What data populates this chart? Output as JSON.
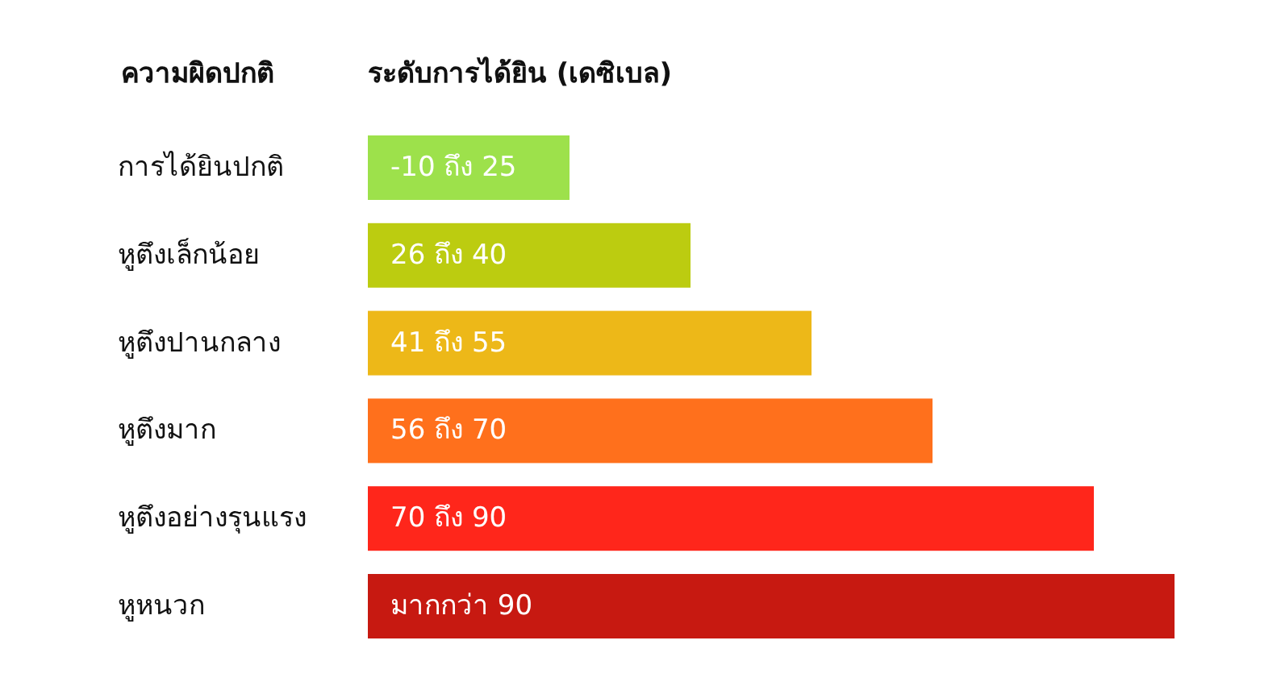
{
  "chart_data": {
    "type": "bar",
    "orientation": "horizontal",
    "ylabel": "ความผิดปกติ",
    "xlabel": "ระดับการได้ยิน (เดซิเบล)",
    "categories": [
      "การได้ยินปกติ",
      "หูตึงเล็กน้อย",
      "หูตึงปานกลาง",
      "หูตึงมาก",
      "หูตึงอย่างรุนแรง",
      "หูหนวก"
    ],
    "values": [
      25,
      40,
      55,
      70,
      90,
      100
    ],
    "xlim": [
      0,
      100
    ],
    "tick_labels": "y",
    "colors": [
      "#9de14b",
      "#bccc10",
      "#edb818",
      "#ff701c",
      "#ff261b",
      "#c71911"
    ],
    "value_labels": [
      "-10 ถึง 25",
      "26 ถึง 40",
      "41 ถึง 55",
      "56 ถึง 70",
      "70 ถึง 90",
      "มากกว่า 90"
    ]
  }
}
